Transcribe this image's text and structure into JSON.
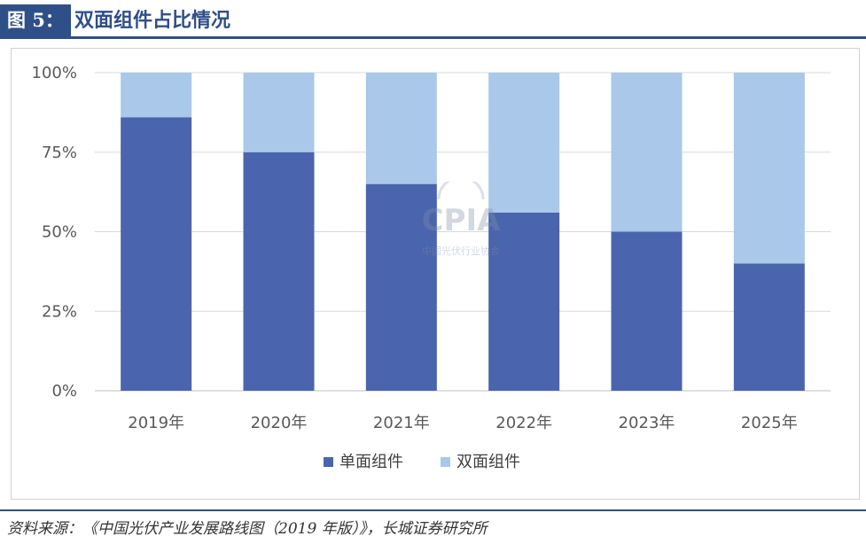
{
  "header": {
    "label": "图 5：",
    "title": "双面组件占比情况"
  },
  "chart_data": {
    "type": "bar",
    "stacked": true,
    "categories": [
      "2019年",
      "2020年",
      "2021年",
      "2022年",
      "2023年",
      "2025年"
    ],
    "series": [
      {
        "name": "单面组件",
        "values": [
          86,
          75,
          65,
          56,
          50,
          40
        ],
        "color": "#4a65ad"
      },
      {
        "name": "双面组件",
        "values": [
          14,
          25,
          35,
          44,
          50,
          60
        ],
        "color": "#a9c8ea"
      }
    ],
    "yticks": [
      "0%",
      "25%",
      "50%",
      "75%",
      "100%"
    ],
    "ylim": [
      0,
      100
    ],
    "grid": true,
    "legend_position": "bottom"
  },
  "watermark": {
    "text": "CPIA",
    "subtext": "中国光伏行业协会"
  },
  "source": "资料来源：《中国光伏产业发展路线图（2019 年版）》，长城证券研究所"
}
